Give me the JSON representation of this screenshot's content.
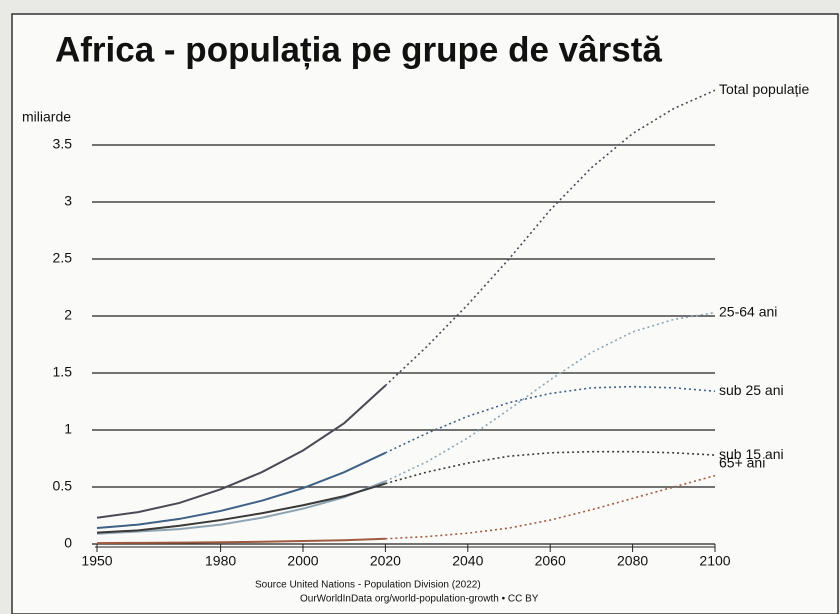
{
  "chart_data": {
    "type": "line",
    "title": "Africa - populația pe grupe de vârstă",
    "y_label": "miliarde",
    "source": [
      "Source  United Nations - Population Division (2022)",
      "OurWorldInData org/world-population-growth • CC BY"
    ],
    "x": [
      1950,
      1960,
      1970,
      1980,
      1990,
      2000,
      2010,
      2020,
      2030,
      2040,
      2050,
      2060,
      2070,
      2080,
      2090,
      2100
    ],
    "projection_from": 2020,
    "series": [
      {
        "name": "Total populație",
        "color": "#4a4a55",
        "label_color": "#111111",
        "values": [
          0.23,
          0.28,
          0.36,
          0.48,
          0.63,
          0.82,
          1.06,
          1.39,
          1.73,
          2.1,
          2.5,
          2.93,
          3.3,
          3.6,
          3.82,
          3.98
        ]
      },
      {
        "name": "25-64 ani",
        "color": "#8fa4b3",
        "label_color": "#111111",
        "values": [
          0.09,
          0.11,
          0.13,
          0.17,
          0.23,
          0.31,
          0.41,
          0.55,
          0.72,
          0.93,
          1.18,
          1.44,
          1.68,
          1.86,
          1.97,
          2.03
        ]
      },
      {
        "name": "sub 25 ani",
        "color": "#3f6185",
        "label_color": "#2b5c8a",
        "values": [
          0.14,
          0.17,
          0.22,
          0.29,
          0.38,
          0.49,
          0.63,
          0.8,
          0.97,
          1.12,
          1.24,
          1.32,
          1.37,
          1.38,
          1.37,
          1.34
        ]
      },
      {
        "name": "sub 15 ani",
        "color": "#3a3a3a",
        "label_color": "#111111",
        "values": [
          0.1,
          0.12,
          0.16,
          0.21,
          0.27,
          0.34,
          0.42,
          0.53,
          0.63,
          0.71,
          0.77,
          0.8,
          0.81,
          0.81,
          0.8,
          0.78
        ]
      },
      {
        "name": "65+ ani",
        "color": "#a05a40",
        "label_color": "#a0522d",
        "values": [
          0.008,
          0.01,
          0.012,
          0.015,
          0.02,
          0.026,
          0.033,
          0.046,
          0.065,
          0.095,
          0.14,
          0.21,
          0.3,
          0.4,
          0.5,
          0.6
        ]
      }
    ],
    "xlim": [
      1950,
      2100
    ],
    "xticks": [
      1950,
      1980,
      2000,
      2020,
      2040,
      2060,
      2080,
      2100
    ],
    "ylim": [
      0,
      4
    ],
    "yticks": [
      0,
      0.5,
      1,
      1.5,
      2,
      2.5,
      3,
      3.5
    ],
    "grid": true
  }
}
